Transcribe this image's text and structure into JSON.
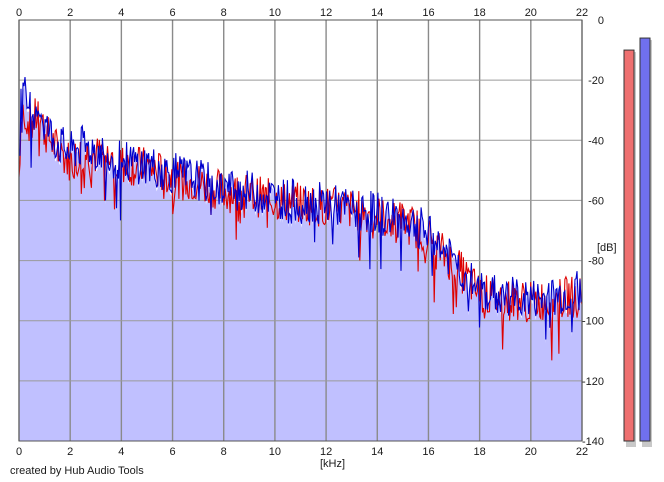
{
  "chart_data": {
    "type": "line",
    "x_unit": "[kHz]",
    "y_unit": "[dB]",
    "xlim": [
      0,
      22
    ],
    "ylim": [
      -140,
      0
    ],
    "x_ticks": [
      "0",
      "2",
      "4",
      "6",
      "8",
      "10",
      "12",
      "14",
      "16",
      "18",
      "20",
      "22"
    ],
    "y_ticks": [
      "0",
      "-20",
      "-40",
      "-60",
      "-80",
      "-100",
      "-120",
      "-140"
    ],
    "grid": true,
    "series": [
      {
        "color": "#dd0000",
        "x": [
          0,
          0.1,
          0.3,
          0.5,
          0.8,
          1,
          1.5,
          2,
          2.5,
          3,
          3.5,
          4,
          5,
          6,
          7,
          8,
          9,
          10,
          11,
          12,
          13,
          14,
          14.5,
          15,
          15.5,
          16,
          16.5,
          17,
          17.5,
          18,
          18.5,
          19,
          19.5,
          20,
          20.5,
          21,
          21.5,
          22
        ],
        "y": [
          -52,
          -28,
          -33,
          -35,
          -30,
          -37,
          -43,
          -47,
          -44,
          -45,
          -46,
          -48,
          -49,
          -52,
          -54,
          -57,
          -58,
          -60,
          -61,
          -62,
          -63,
          -65,
          -67,
          -67,
          -69,
          -72,
          -77,
          -81,
          -86,
          -91,
          -92,
          -93,
          -93,
          -94,
          -93,
          -93,
          -92,
          -92
        ]
      },
      {
        "color": "#0000cc",
        "x": [
          0,
          0.1,
          0.3,
          0.5,
          0.8,
          1,
          1.5,
          2,
          2.5,
          3,
          3.5,
          4,
          5,
          6,
          7,
          8,
          9,
          10,
          11,
          12,
          13,
          14,
          14.5,
          15,
          15.5,
          16,
          16.5,
          17,
          17.5,
          18,
          18.5,
          19,
          19.5,
          20,
          20.5,
          21,
          21.5,
          22
        ],
        "y": [
          -40,
          -22,
          -27,
          -30,
          -28,
          -35,
          -41,
          -44,
          -42,
          -43,
          -45,
          -47,
          -48,
          -51,
          -53,
          -56,
          -57,
          -59,
          -60,
          -61,
          -63,
          -64,
          -66,
          -66,
          -68,
          -71,
          -76,
          -80,
          -86,
          -90,
          -91,
          -92,
          -92,
          -93,
          -93,
          -92,
          -91,
          -90
        ]
      }
    ],
    "level_meters": [
      {
        "color": "#ee7070",
        "level": -10
      },
      {
        "color": "#7070ee",
        "level": -6
      }
    ],
    "fill_color": "#c0c0ff"
  },
  "footer": {
    "credit": "created by Hub Audio Tools"
  }
}
